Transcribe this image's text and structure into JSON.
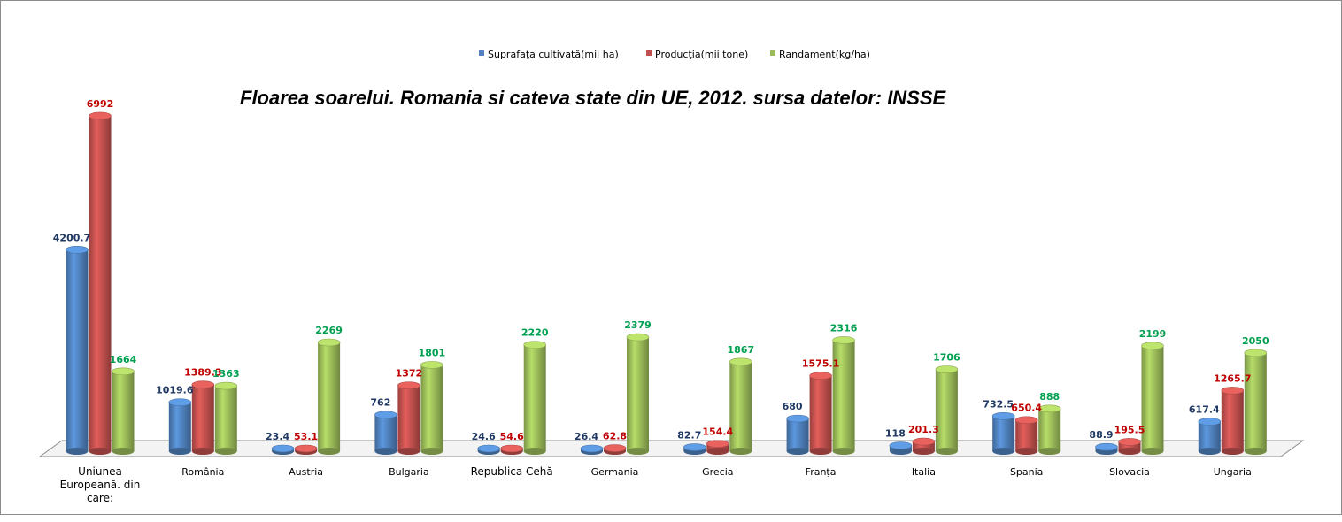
{
  "chart_data": {
    "type": "bar",
    "title": "Floarea soarelui. Romania si cateva state din UE, 2012. sursa datelor: INSSE",
    "categories": [
      "Uniunea Europeană. din care:",
      "România",
      "Austria",
      "Bulgaria",
      "Republica Cehă",
      "Germania",
      "Grecia",
      "Franţa",
      "Italia",
      "Spania",
      "Slovacia",
      "Ungaria"
    ],
    "category_lines": [
      [
        "Uniunea",
        "Europeană. din",
        "care:"
      ],
      [
        "România"
      ],
      [
        "Austria"
      ],
      [
        "Bulgaria"
      ],
      [
        "Republica Cehă"
      ],
      [
        "Germania"
      ],
      [
        "Grecia"
      ],
      [
        "Franţa"
      ],
      [
        "Italia"
      ],
      [
        "Spania"
      ],
      [
        "Slovacia"
      ],
      [
        "Ungaria"
      ]
    ],
    "series": [
      {
        "name": "Suprafaţa cultivată(mii ha)",
        "color": "#4f81bd",
        "label_color": "#1f3864",
        "values": [
          4200.7,
          1019.6,
          23.4,
          762,
          24.6,
          26.4,
          82.7,
          680,
          118,
          732.5,
          88.9,
          617.4
        ],
        "labels": [
          "4200.7",
          "1019.6",
          "23.4",
          "762",
          "24.6",
          "26.4",
          "82.7",
          "680",
          "118",
          "732.5",
          "88.9",
          "617.4"
        ]
      },
      {
        "name": "Producţia(mii tone)",
        "color": "#c0504d",
        "label_color": "#c00000",
        "values": [
          6992,
          1389.3,
          53.1,
          1372,
          54.6,
          62.8,
          154.4,
          1575.1,
          201.3,
          650.4,
          195.5,
          1265.7
        ],
        "labels": [
          "6992",
          "1389.3",
          "53.1",
          "1372",
          "54.6",
          "62.8",
          "154.4",
          "1575.1",
          "201.3",
          "650.4",
          "195.5",
          "1265.7"
        ]
      },
      {
        "name": "Randament(kg/ha)",
        "color": "#9bbb59",
        "label_color": "#00a050",
        "values": [
          1664,
          1363,
          2269,
          1801,
          2220,
          2379,
          1867,
          2316,
          1706,
          888,
          2199,
          2050
        ],
        "labels": [
          "1664",
          "1363",
          "2269",
          "1801",
          "2220",
          "2379",
          "1867",
          "2316",
          "1706",
          "888",
          "2199",
          "2050"
        ]
      }
    ],
    "ylim": [
      0,
      7600
    ],
    "xlabel": "",
    "ylabel": "",
    "legend_position": "top",
    "grid": false
  }
}
